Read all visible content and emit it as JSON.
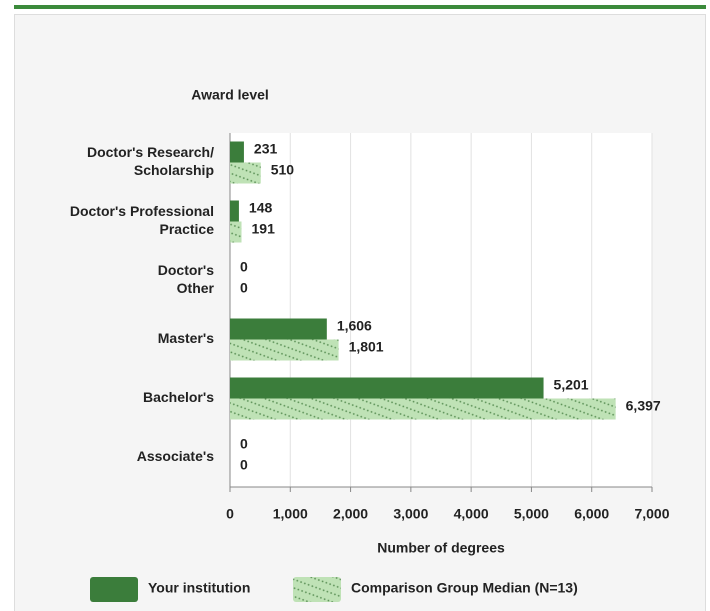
{
  "chart_data": {
    "type": "hbar",
    "y_axis_title": "Award level",
    "x_axis_title": "Number of degrees",
    "categories": [
      [
        "Doctor's Research/",
        "Scholarship"
      ],
      [
        "Doctor's Professional",
        "Practice"
      ],
      [
        "Doctor's",
        "Other"
      ],
      [
        "Master's"
      ],
      [
        "Bachelor's"
      ],
      [
        "Associate's"
      ]
    ],
    "series": [
      {
        "name": "Your institution",
        "color": "#3b7d3b",
        "hatch": false,
        "values": [
          231,
          148,
          0,
          1606,
          5201,
          0
        ],
        "value_labels": [
          "231",
          "148",
          "0",
          "1,606",
          "5,201",
          "0"
        ]
      },
      {
        "name": "Comparison Group Median (N=13)",
        "color": "#bfe2b6",
        "hatch": true,
        "values": [
          510,
          191,
          0,
          1801,
          6397,
          0
        ],
        "value_labels": [
          "510",
          "191",
          "0",
          "1,801",
          "6,397",
          "0"
        ]
      }
    ],
    "xlim": [
      0,
      7000
    ],
    "xticks": [
      0,
      {
        "value": 1000,
        "label": "1,000"
      },
      {
        "value": 2000,
        "label": "2,000"
      },
      {
        "value": 3000,
        "label": "3,000"
      },
      {
        "value": 4000,
        "label": "4,000"
      },
      {
        "value": 5000,
        "label": "5,000"
      },
      {
        "value": 6000,
        "label": "6,000"
      },
      {
        "value": 7000,
        "label": "7,000"
      }
    ],
    "grid": true
  }
}
